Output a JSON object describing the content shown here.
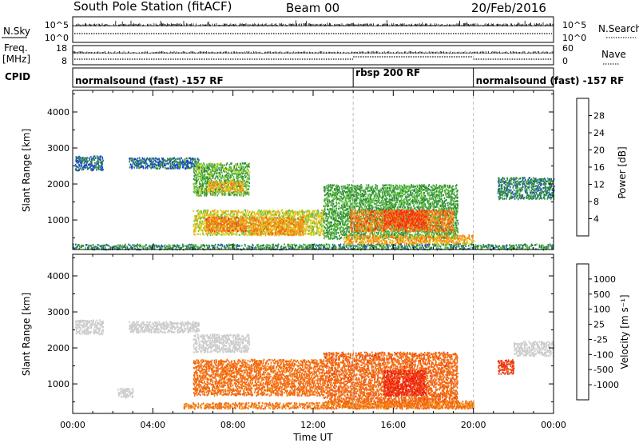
{
  "header": {
    "station": "South Pole Station (fitACF)",
    "beam": "Beam 00",
    "date": "20/Feb/2016"
  },
  "status_panels": {
    "nsky": {
      "label": "N.Sky",
      "tick_top": "10^5",
      "tick_bottom": "10^0"
    },
    "nsearch": {
      "label": "N.Search",
      "tick_top": "10^5",
      "tick_bottom": "10^0"
    },
    "freq": {
      "label_line1": "Freq.",
      "label_line2": "[MHz]",
      "tick_top": "18",
      "tick_bottom": "8"
    },
    "nave": {
      "label": "Nave",
      "tick_top": "60",
      "tick_bottom": "0"
    },
    "cpid": {
      "label": "CPID"
    }
  },
  "cpid_segments": [
    {
      "label": "normalsound (fast) -157 RF",
      "start_hour": 0,
      "end_hour": 14
    },
    {
      "label": "rbsp 200 RF",
      "start_hour": 14,
      "end_hour": 20
    },
    {
      "label": "normalsound (fast) -157 RF",
      "start_hour": 20,
      "end_hour": 24
    }
  ],
  "x_axis": {
    "title": "Time UT",
    "tick_labels": [
      "00:00",
      "04:00",
      "08:00",
      "12:00",
      "16:00",
      "20:00",
      "00:00"
    ],
    "range_hours": [
      0,
      24
    ]
  },
  "y_axis": {
    "title": "Slant Range [km]",
    "tick_labels": [
      "1000",
      "2000",
      "3000",
      "4000"
    ],
    "range_km": [
      180,
      4600
    ]
  },
  "power_colorbar": {
    "title": "Power [dB]",
    "tick_labels": [
      "4",
      "8",
      "12",
      "16",
      "20",
      "24",
      "28"
    ],
    "colors": [
      "#1428ff",
      "#1e5aa8",
      "#2e8a3c",
      "#5cbf3a",
      "#d6d21e",
      "#f7a020",
      "#f26f10",
      "#ff2a12"
    ]
  },
  "velocity_colorbar": {
    "title": "Velocity [m s⁻¹]",
    "tick_labels": [
      "1000",
      "500",
      "100",
      "25",
      "-25",
      "-100",
      "-500",
      "-1000"
    ],
    "colors": [
      "#1f3fb8",
      "#2f6aa8",
      "#3a9a3a",
      "#7fd43a",
      "#cccccc",
      "#f7a020",
      "#f26a10",
      "#e8361a",
      "#ff0a0a"
    ]
  },
  "chart_data": {
    "type": "heatmap",
    "title": "South Pole Station (fitACF) Beam 00 20/Feb/2016",
    "xlabel": "Time UT",
    "ylabel": "Slant Range [km]",
    "x_range_hours": [
      0,
      24
    ],
    "y_range_km": [
      180,
      4600
    ],
    "vertical_markers_hours": [
      14,
      20
    ],
    "panels": [
      {
        "name": "Power [dB]",
        "echo_regions": [
          {
            "t0": 0.1,
            "t1": 1.5,
            "r0": 2400,
            "r1": 2800,
            "value": 7
          },
          {
            "t0": 2.8,
            "t1": 6.3,
            "r0": 2450,
            "r1": 2750,
            "value": 7
          },
          {
            "t0": 6.0,
            "t1": 8.8,
            "r0": 1700,
            "r1": 2600,
            "value": 13
          },
          {
            "t0": 6.7,
            "t1": 8.5,
            "r0": 1800,
            "r1": 2100,
            "value": 21
          },
          {
            "t0": 6.0,
            "t1": 12.5,
            "r0": 600,
            "r1": 1300,
            "value": 18
          },
          {
            "t0": 6.6,
            "t1": 8.7,
            "r0": 700,
            "r1": 1100,
            "value": 25
          },
          {
            "t0": 8.8,
            "t1": 11.5,
            "r0": 600,
            "r1": 1100,
            "value": 23
          },
          {
            "t0": 12.5,
            "t1": 19.2,
            "r0": 500,
            "r1": 2000,
            "value": 12
          },
          {
            "t0": 13.8,
            "t1": 19.0,
            "r0": 700,
            "r1": 1300,
            "value": 25
          },
          {
            "t0": 15.5,
            "t1": 17.6,
            "r0": 800,
            "r1": 1300,
            "value": 29
          },
          {
            "t0": 13.5,
            "t1": 20.0,
            "r0": 350,
            "r1": 600,
            "value": 22
          },
          {
            "t0": 0.0,
            "t1": 24.0,
            "r0": 200,
            "r1": 350,
            "value": 10
          },
          {
            "t0": 21.2,
            "t1": 24.0,
            "r0": 1600,
            "r1": 2200,
            "value": 9
          }
        ]
      },
      {
        "name": "Velocity [m s-1]",
        "echo_regions": [
          {
            "t0": 0.1,
            "t1": 1.5,
            "r0": 2400,
            "r1": 2800,
            "value": 0
          },
          {
            "t0": 2.8,
            "t1": 6.3,
            "r0": 2450,
            "r1": 2750,
            "value": 0
          },
          {
            "t0": 6.0,
            "t1": 8.8,
            "r0": 1900,
            "r1": 2400,
            "value": 0
          },
          {
            "t0": 6.0,
            "t1": 12.5,
            "r0": 700,
            "r1": 1700,
            "value": -150
          },
          {
            "t0": 12.5,
            "t1": 19.2,
            "r0": 500,
            "r1": 1900,
            "value": -400
          },
          {
            "t0": 15.5,
            "t1": 17.6,
            "r0": 700,
            "r1": 1400,
            "value": -900
          },
          {
            "t0": 13.5,
            "t1": 20.0,
            "r0": 350,
            "r1": 550,
            "value": -150
          },
          {
            "t0": 5.5,
            "t1": 20.0,
            "r0": 330,
            "r1": 500,
            "value": -120
          },
          {
            "t0": 21.2,
            "t1": 22.0,
            "r0": 1300,
            "r1": 1700,
            "value": -600
          },
          {
            "t0": 22.0,
            "t1": 24.0,
            "r0": 1800,
            "r1": 2200,
            "value": 0
          },
          {
            "t0": 2.2,
            "t1": 3.0,
            "r0": 650,
            "r1": 900,
            "value": 0
          }
        ]
      }
    ]
  }
}
